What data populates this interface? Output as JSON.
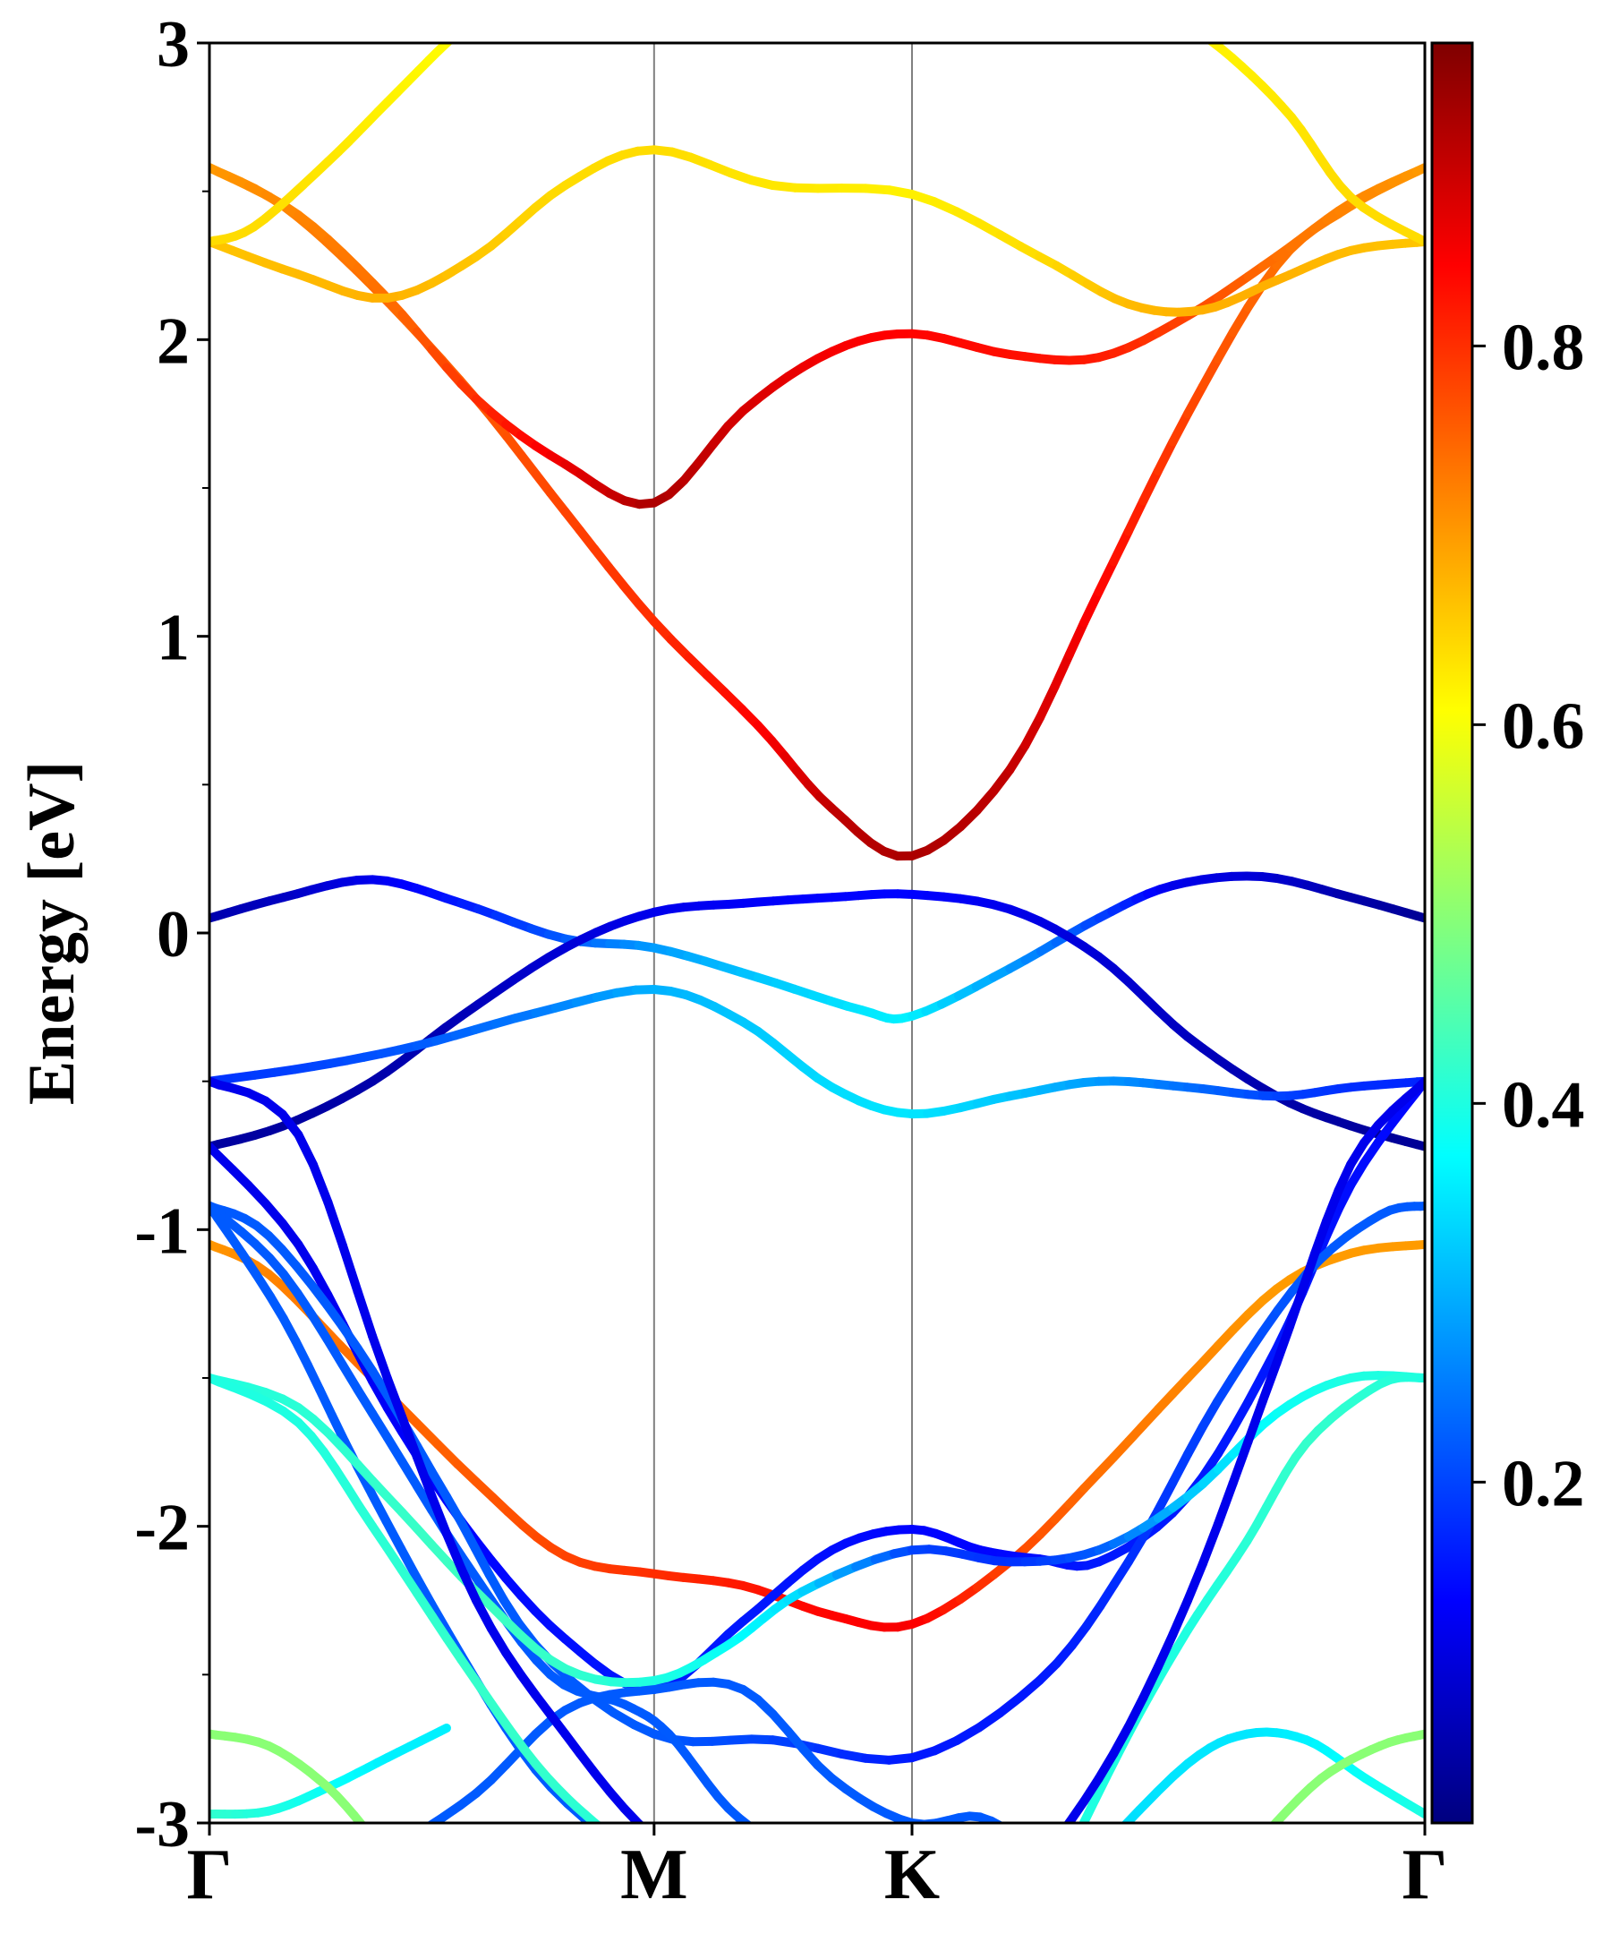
{
  "chart_data": {
    "type": "line",
    "ylabel": "Energy [eV]",
    "ylim": [
      -3,
      3
    ],
    "y_ticks": [
      "3",
      "2",
      "1",
      "0",
      "-1",
      "-2",
      "-3"
    ],
    "x_path": [
      0,
      1.5,
      2.37,
      4.1
    ],
    "x_ticks": [
      "Γ",
      "M",
      "K",
      "Γ"
    ],
    "grid": "vertical lines at high-symmetry points",
    "colormap": "jet",
    "colorbar_ticks": [
      "0.8",
      "0.6",
      "0.4",
      "0.2"
    ],
    "colorbar_range": [
      0.02,
      0.96
    ],
    "bands": [
      {
        "x": [
          0,
          0.25,
          0.55,
          0.9,
          1.2,
          1.5,
          1.85,
          2.1,
          2.37,
          2.7,
          3.0,
          3.3,
          3.6,
          3.85,
          4.1
        ],
        "y": [
          2.58,
          2.45,
          2.18,
          1.8,
          1.42,
          1.05,
          0.7,
          0.42,
          0.26,
          0.55,
          1.15,
          1.75,
          2.25,
          2.45,
          2.58
        ],
        "c": [
          0.7,
          0.72,
          0.74,
          0.76,
          0.78,
          0.8,
          0.84,
          0.9,
          0.92,
          0.9,
          0.84,
          0.78,
          0.74,
          0.72,
          0.7
        ]
      },
      {
        "x": [
          0,
          0.3,
          0.6,
          0.9,
          1.2,
          1.5,
          1.8,
          2.1,
          2.37,
          2.7,
          3.0,
          3.3,
          3.6,
          3.85,
          4.1
        ],
        "y": [
          2.58,
          2.42,
          2.14,
          1.8,
          1.58,
          1.45,
          1.76,
          1.96,
          2.02,
          1.95,
          1.94,
          2.08,
          2.28,
          2.46,
          2.58
        ],
        "c": [
          0.7,
          0.72,
          0.74,
          0.8,
          0.86,
          0.92,
          0.88,
          0.85,
          0.84,
          0.83,
          0.82,
          0.78,
          0.74,
          0.72,
          0.7
        ]
      },
      {
        "x": [
          0,
          0.3,
          0.6,
          0.9,
          1.2,
          1.5,
          1.9,
          2.37,
          2.8,
          3.1,
          3.35,
          3.6,
          3.85,
          4.1
        ],
        "y": [
          2.33,
          2.22,
          2.14,
          2.28,
          2.52,
          2.64,
          2.52,
          2.49,
          2.28,
          2.12,
          2.1,
          2.2,
          2.3,
          2.33
        ],
        "c": [
          0.66,
          0.67,
          0.68,
          0.66,
          0.64,
          0.64,
          0.63,
          0.62,
          0.64,
          0.67,
          0.68,
          0.68,
          0.67,
          0.66
        ]
      },
      {
        "x": [
          0,
          0.15,
          0.4,
          0.6,
          0.8,
          0.92
        ],
        "y": [
          2.33,
          2.38,
          2.6,
          2.8,
          3.0,
          3.1
        ],
        "c": [
          0.64,
          0.64,
          0.63,
          0.62,
          0.61,
          0.6
        ]
      },
      {
        "x": [
          3.25,
          3.45,
          3.65,
          3.85,
          4.1
        ],
        "y": [
          3.1,
          2.95,
          2.75,
          2.48,
          2.33
        ],
        "c": [
          0.62,
          0.62,
          0.63,
          0.64,
          0.64
        ]
      },
      {
        "x": [
          0,
          0.25,
          0.55,
          0.85,
          1.2,
          1.5,
          1.85,
          2.2,
          2.37,
          2.7,
          3.0,
          3.25,
          3.55,
          3.85,
          4.1
        ],
        "y": [
          0.05,
          0.12,
          0.18,
          0.1,
          -0.02,
          -0.05,
          -0.15,
          -0.26,
          -0.28,
          -0.12,
          0.05,
          0.16,
          0.19,
          0.12,
          0.05
        ],
        "c": [
          0.06,
          0.08,
          0.12,
          0.16,
          0.22,
          0.28,
          0.32,
          0.35,
          0.36,
          0.28,
          0.2,
          0.12,
          0.1,
          0.06,
          0.04
        ]
      },
      {
        "x": [
          0,
          0.25,
          0.55,
          0.85,
          1.2,
          1.5,
          1.8,
          2.1,
          2.37,
          2.7,
          3.0,
          3.3,
          3.6,
          3.85,
          4.1
        ],
        "y": [
          -0.72,
          -0.65,
          -0.5,
          -0.28,
          -0.05,
          0.07,
          0.1,
          0.12,
          0.13,
          0.08,
          -0.08,
          -0.35,
          -0.55,
          -0.65,
          -0.72
        ],
        "c": [
          0.05,
          0.05,
          0.06,
          0.07,
          0.1,
          0.12,
          0.13,
          0.14,
          0.14,
          0.12,
          0.1,
          0.08,
          0.06,
          0.05,
          0.04
        ]
      },
      {
        "x": [
          0,
          0.35,
          0.7,
          1.1,
          1.5,
          1.8,
          2.1,
          2.37,
          2.7,
          3.0,
          3.3,
          3.6,
          3.85,
          4.1
        ],
        "y": [
          -0.5,
          -0.45,
          -0.38,
          -0.27,
          -0.19,
          -0.3,
          -0.52,
          -0.61,
          -0.55,
          -0.5,
          -0.52,
          -0.55,
          -0.52,
          -0.5
        ],
        "c": [
          0.18,
          0.2,
          0.22,
          0.25,
          0.3,
          0.32,
          0.34,
          0.35,
          0.32,
          0.28,
          0.24,
          0.2,
          0.18,
          0.17
        ]
      },
      {
        "x": [
          0,
          0.2,
          0.5,
          0.9,
          1.2,
          1.5,
          1.8,
          2.1,
          2.37,
          2.7,
          3.0,
          3.3,
          3.6,
          3.85,
          4.1
        ],
        "y": [
          -1.05,
          -1.15,
          -1.45,
          -1.85,
          -2.1,
          -2.16,
          -2.2,
          -2.3,
          -2.33,
          -2.12,
          -1.82,
          -1.5,
          -1.2,
          -1.08,
          -1.05
        ],
        "c": [
          0.7,
          0.72,
          0.74,
          0.76,
          0.78,
          0.8,
          0.82,
          0.84,
          0.85,
          0.78,
          0.74,
          0.72,
          0.7,
          0.7,
          0.7
        ]
      },
      {
        "x": [
          0,
          0.3,
          0.6,
          0.9,
          1.2,
          1.5,
          1.8,
          2.1,
          2.37,
          2.6,
          2.8,
          3.0,
          3.3,
          3.6,
          3.85,
          4.1
        ],
        "y": [
          -0.72,
          -1.05,
          -1.6,
          -2.05,
          -2.38,
          -2.55,
          -2.32,
          -2.08,
          -2.01,
          -2.08,
          -2.11,
          -2.12,
          -1.9,
          -1.4,
          -0.85,
          -0.5
        ],
        "c": [
          0.12,
          0.12,
          0.13,
          0.14,
          0.15,
          0.16,
          0.16,
          0.15,
          0.14,
          0.14,
          0.15,
          0.16,
          0.16,
          0.16,
          0.15,
          0.14
        ]
      },
      {
        "x": [
          0,
          0.2,
          0.5,
          0.8,
          1.1,
          1.5,
          1.9,
          2.37,
          2.8,
          3.1,
          3.4,
          3.7,
          3.95,
          4.1
        ],
        "y": [
          -0.92,
          -1.02,
          -1.4,
          -1.9,
          -2.4,
          -2.7,
          -2.72,
          -2.78,
          -2.52,
          -2.12,
          -1.58,
          -1.15,
          -0.95,
          -0.92
        ],
        "c": [
          0.22,
          0.22,
          0.22,
          0.22,
          0.22,
          0.22,
          0.2,
          0.16,
          0.16,
          0.18,
          0.2,
          0.22,
          0.22,
          0.22
        ]
      },
      {
        "x": [
          0,
          0.25,
          0.55,
          0.85,
          1.15,
          1.4,
          1.55,
          1.75,
          1.95
        ],
        "y": [
          -0.92,
          -1.15,
          -1.62,
          -2.1,
          -2.5,
          -2.6,
          -2.7,
          -2.95,
          -3.1
        ],
        "c": [
          0.22,
          0.22,
          0.22,
          0.22,
          0.22,
          0.22,
          0.22,
          0.22,
          0.22
        ]
      },
      {
        "x": [
          0,
          0.25,
          0.5,
          0.8,
          1.1,
          1.4,
          1.5
        ],
        "y": [
          -0.92,
          -1.3,
          -1.8,
          -2.35,
          -2.82,
          -3.1,
          -3.2
        ],
        "c": [
          0.22,
          0.22,
          0.22,
          0.22,
          0.22,
          0.22,
          0.22
        ]
      },
      {
        "x": [
          0.6,
          0.9,
          1.2,
          1.5,
          1.8,
          2.1,
          2.37,
          2.6,
          2.8
        ],
        "y": [
          -3.1,
          -2.9,
          -2.62,
          -2.55,
          -2.55,
          -2.85,
          -3.0,
          -2.98,
          -3.1
        ],
        "c": [
          0.22,
          0.22,
          0.22,
          0.22,
          0.22,
          0.22,
          0.22,
          0.22,
          0.22
        ]
      },
      {
        "x": [
          0,
          0.3,
          0.6,
          0.9,
          1.2,
          1.5,
          1.75,
          2.0,
          2.37,
          2.7,
          3.0,
          3.3,
          3.6,
          3.85,
          4.1
        ],
        "y": [
          -1.5,
          -1.6,
          -1.9,
          -2.22,
          -2.48,
          -2.52,
          -2.4,
          -2.22,
          -2.08,
          -2.12,
          -2.08,
          -1.9,
          -1.62,
          -1.5,
          -1.5
        ],
        "c": [
          0.4,
          0.41,
          0.42,
          0.43,
          0.42,
          0.4,
          0.38,
          0.34,
          0.2,
          0.18,
          0.22,
          0.32,
          0.38,
          0.4,
          0.4
        ]
      },
      {
        "x": [
          0,
          0.3,
          0.55,
          0.85,
          1.1,
          1.3,
          1.45
        ],
        "y": [
          -1.5,
          -1.65,
          -2.0,
          -2.45,
          -2.8,
          -3.0,
          -3.1
        ],
        "c": [
          0.4,
          0.4,
          0.41,
          0.42,
          0.42,
          0.41,
          0.4
        ]
      },
      {
        "x": [
          2.9,
          3.1,
          3.3,
          3.5,
          3.7,
          3.95,
          4.1
        ],
        "y": [
          -3.1,
          -2.7,
          -2.35,
          -2.05,
          -1.72,
          -1.52,
          -1.5
        ],
        "c": [
          0.4,
          0.4,
          0.4,
          0.41,
          0.42,
          0.41,
          0.4
        ]
      },
      {
        "x": [
          0,
          0.3,
          0.6,
          0.9,
          1.2,
          1.5,
          1.8,
          2.1,
          2.37,
          2.7,
          3.0,
          3.3,
          3.6,
          3.85,
          4.1
        ],
        "y": [
          -0.5,
          -0.68,
          -1.5,
          -2.25,
          -2.7,
          -3.05,
          -3.2,
          -3.2,
          -3.2,
          -3.2,
          -2.85,
          -2.25,
          -1.45,
          -0.78,
          -0.5
        ],
        "c": [
          0.12,
          0.12,
          0.12,
          0.12,
          0.12,
          0.12,
          0.12,
          0.12,
          0.12,
          0.12,
          0.12,
          0.12,
          0.12,
          0.12,
          0.12
        ]
      },
      {
        "x": [
          0,
          0.2,
          0.4,
          0.6,
          0.8
        ],
        "y": [
          -2.97,
          -2.96,
          -2.88,
          -2.78,
          -2.68
        ],
        "c": [
          0.42,
          0.4,
          0.38,
          0.36,
          0.36
        ]
      },
      {
        "x": [
          0,
          0.2,
          0.4,
          0.55
        ],
        "y": [
          -2.7,
          -2.74,
          -2.88,
          -3.05
        ],
        "c": [
          0.5,
          0.5,
          0.5,
          0.5
        ]
      },
      {
        "x": [
          3.0,
          3.3,
          3.5,
          3.7,
          3.9,
          4.1
        ],
        "y": [
          -3.1,
          -2.8,
          -2.7,
          -2.72,
          -2.85,
          -2.97
        ],
        "c": [
          0.34,
          0.35,
          0.35,
          0.36,
          0.38,
          0.4
        ]
      },
      {
        "x": [
          3.55,
          3.75,
          3.95,
          4.1
        ],
        "y": [
          -3.05,
          -2.85,
          -2.74,
          -2.7
        ],
        "c": [
          0.5,
          0.5,
          0.5,
          0.5
        ]
      }
    ]
  }
}
